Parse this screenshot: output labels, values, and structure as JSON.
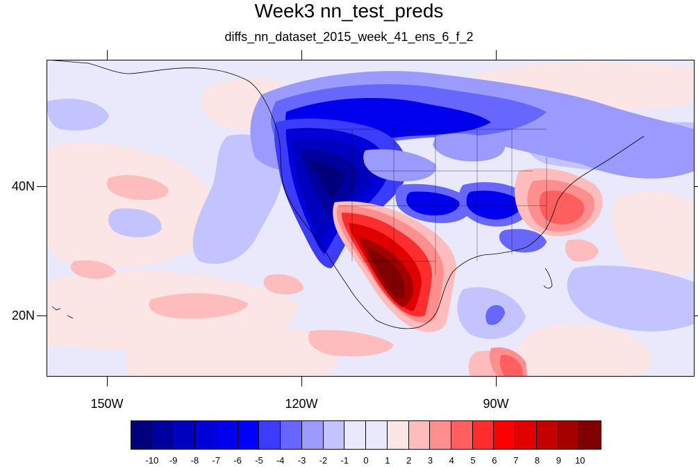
{
  "title": "Week3 nn_test_preds",
  "subtitle": "diffs_nn_dataset_2015_week_41_ens_6_f_2",
  "map": {
    "projection": "cylindrical-equidistant",
    "lon_range": [
      -159.3,
      -60.0
    ],
    "lat_range": [
      11.0,
      59.5
    ],
    "lat_tick_labels": [
      "40N",
      "20N"
    ],
    "lon_tick_labels": [
      "150W",
      "120W",
      "90W"
    ],
    "anomaly_regions": [
      {
        "name": "background-light-blue",
        "level": -1
      },
      {
        "name": "pacific-northwest-deep-blue",
        "level": -10
      },
      {
        "name": "canada-blue-band",
        "level": -6
      },
      {
        "name": "southwest-mexico-red",
        "level": 9
      },
      {
        "name": "appalachian-red",
        "level": 4
      },
      {
        "name": "central-us-blue",
        "level": -6
      },
      {
        "name": "pacific-light-red-bands",
        "level": 1
      },
      {
        "name": "caribbean-light-red",
        "level": 1
      }
    ]
  },
  "colorbar": {
    "labels": [
      "-10",
      "-9",
      "-8",
      "-7",
      "-6",
      "-5",
      "-4",
      "-3",
      "-2",
      "-1",
      "0",
      "1",
      "2",
      "3",
      "4",
      "5",
      "6",
      "7",
      "8",
      "9",
      "10"
    ],
    "colors": [
      "#00007f",
      "#00009f",
      "#0000bf",
      "#0000d8",
      "#0000ef",
      "#0000ff",
      "#3c3cff",
      "#6767ff",
      "#9a9aff",
      "#c3c3ff",
      "#e9e9fb",
      "#fbe5e5",
      "#ffbcbc",
      "#ff8f8f",
      "#ff5f5f",
      "#ff2d2d",
      "#ff0000",
      "#e00000",
      "#c40000",
      "#a40000",
      "#7f0000"
    ]
  }
}
